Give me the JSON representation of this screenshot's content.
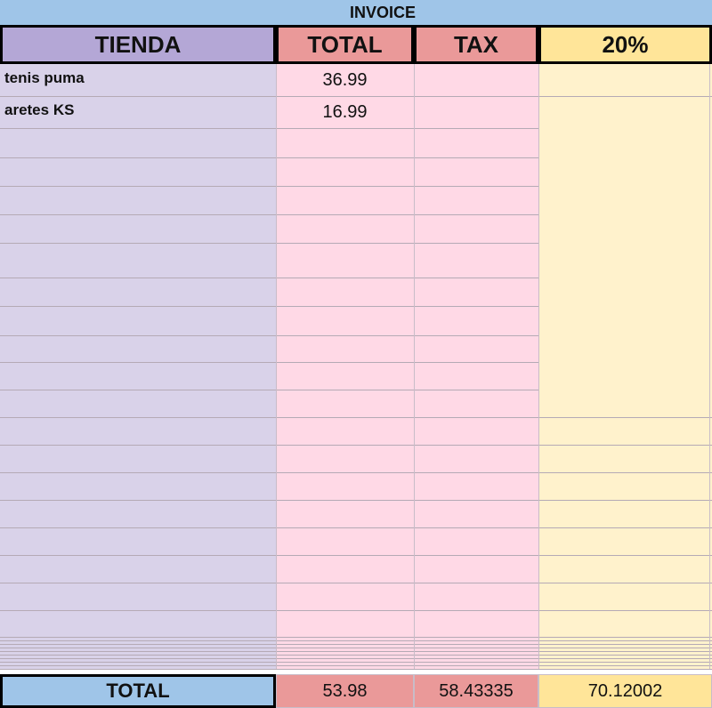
{
  "title": "INVOICE",
  "table": {
    "columns": [
      "TIENDA",
      "TOTAL",
      "TAX",
      "20%"
    ],
    "rows": [
      [
        "tenis puma",
        "36.99"
      ],
      [
        "aretes KS",
        "16.99"
      ]
    ],
    "totals": [
      "TOTAL",
      "53.98",
      "58.43335",
      "70.12002"
    ]
  }
}
